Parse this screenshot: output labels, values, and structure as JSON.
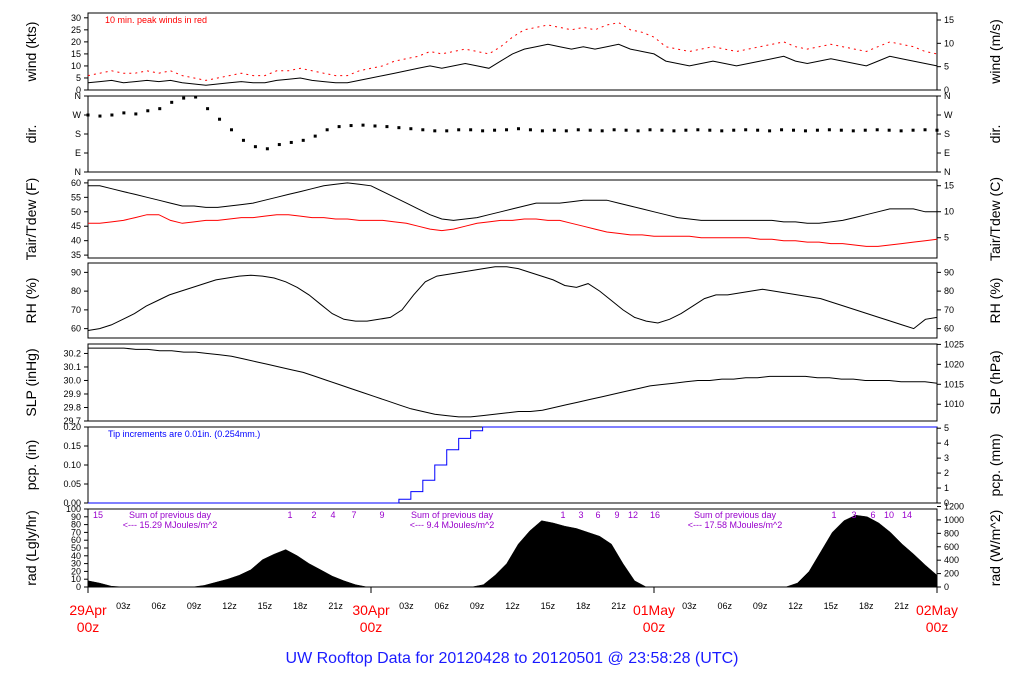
{
  "footer": "UW Rooftop Data for 20120428  to  20120501 @ 23:58:28  (UTC)",
  "colors": {
    "primary": "#000000",
    "red": "#ff0000",
    "blue": "#0000ff",
    "purple": "#9900cc",
    "footer": "#1a1aff"
  },
  "chart_data": [
    {
      "id": "wind",
      "type": "line",
      "ylabel": "wind (kts)",
      "ylabel_right": "wind (m/s)",
      "ylim": [
        0,
        32
      ],
      "yticks": [
        0,
        5,
        10,
        15,
        20,
        25,
        30
      ],
      "ylim_right": [
        0,
        16.5
      ],
      "yticks_right": [
        0,
        5,
        10,
        15
      ],
      "annotation": "10 min. peak winds in red",
      "series": [
        {
          "name": "wind",
          "values": [
            3,
            3.5,
            4,
            3,
            3.5,
            4,
            3.5,
            4,
            3,
            2.5,
            2,
            2.5,
            3,
            3.5,
            3,
            3,
            4,
            4.5,
            5,
            4,
            3.5,
            3,
            3,
            4,
            5,
            6,
            7,
            8,
            9,
            10,
            9,
            10,
            11,
            10,
            9,
            12,
            15,
            17,
            18,
            19,
            18,
            17,
            18,
            17,
            18,
            19,
            17,
            16,
            15,
            12,
            11,
            10,
            11,
            12,
            11,
            10,
            11,
            12,
            13,
            14,
            12,
            11,
            12,
            13,
            12,
            11,
            10,
            12,
            14,
            13,
            12,
            11,
            10
          ]
        },
        {
          "name": "peak",
          "values": [
            6,
            7,
            8,
            7,
            7,
            8,
            7,
            8,
            6,
            5,
            4,
            5,
            6,
            7,
            6,
            6,
            8,
            8,
            9,
            8,
            7,
            6,
            6,
            8,
            9,
            10,
            12,
            13,
            14,
            16,
            15,
            16,
            17,
            16,
            15,
            18,
            22,
            25,
            26,
            27,
            26,
            25,
            26,
            25,
            27,
            28,
            25,
            24,
            22,
            18,
            17,
            16,
            17,
            18,
            17,
            16,
            17,
            18,
            19,
            20,
            18,
            17,
            18,
            19,
            18,
            17,
            16,
            18,
            20,
            19,
            18,
            16,
            15
          ]
        }
      ]
    },
    {
      "id": "dir",
      "type": "scatter",
      "ylabel": "dir.",
      "ylabel_right": "dir.",
      "ylim": [
        0,
        360
      ],
      "ytick_labels": [
        "N",
        "W",
        "S",
        "E",
        "N"
      ],
      "series": [
        {
          "name": "dir",
          "values": [
            270,
            265,
            270,
            280,
            275,
            290,
            300,
            330,
            350,
            355,
            300,
            250,
            200,
            150,
            120,
            110,
            130,
            140,
            150,
            170,
            200,
            215,
            220,
            222,
            218,
            215,
            210,
            205,
            200,
            195,
            195,
            200,
            200,
            195,
            198,
            200,
            205,
            200,
            195,
            198,
            195,
            200,
            198,
            195,
            200,
            198,
            195,
            200,
            198,
            195,
            198,
            200,
            198,
            195,
            198,
            200,
            198,
            195,
            200,
            198,
            195,
            198,
            200,
            198,
            195,
            198,
            200,
            198,
            195,
            198,
            200,
            198
          ]
        }
      ]
    },
    {
      "id": "temp",
      "type": "line",
      "ylabel": "Tair/Tdew (F)",
      "ylabel_right": "Tair/Tdew (C)",
      "ylim": [
        34,
        61
      ],
      "yticks": [
        35,
        40,
        45,
        50,
        55,
        60
      ],
      "ylim_right": [
        1.1,
        16.1
      ],
      "yticks_right": [
        5,
        10,
        15
      ],
      "series": [
        {
          "name": "Tair",
          "values": [
            59,
            59,
            58,
            57,
            56,
            55,
            54,
            53,
            52,
            52,
            51.5,
            51.5,
            52,
            52.5,
            53,
            54,
            55,
            56,
            57,
            58,
            59,
            59.5,
            60,
            59.5,
            59,
            57,
            55,
            53,
            51,
            49,
            47.5,
            47,
            47.5,
            48,
            49,
            50,
            51,
            52,
            53,
            53,
            53,
            53.5,
            54,
            54,
            54,
            53,
            52,
            51,
            50,
            49,
            48,
            47.5,
            47,
            47,
            47,
            47,
            47,
            47,
            47,
            46.5,
            46.5,
            46,
            46,
            46.5,
            47,
            48,
            49,
            50,
            51,
            51,
            51,
            50,
            50
          ]
        },
        {
          "name": "Tdew",
          "values": [
            46,
            46,
            46.5,
            47,
            48,
            49,
            49,
            47,
            46,
            46.5,
            47,
            47,
            47.5,
            48,
            48,
            48.5,
            49,
            49,
            48.5,
            48,
            48,
            47.5,
            47.5,
            47,
            47,
            47,
            46.5,
            46,
            45,
            44,
            43.5,
            44,
            45,
            46,
            46.5,
            47,
            47,
            47.5,
            47.5,
            47,
            47,
            46,
            45,
            44,
            43,
            42.5,
            42,
            42,
            41.5,
            41.5,
            41.5,
            41.5,
            41,
            41,
            41,
            41,
            41,
            40.5,
            40.5,
            40,
            40,
            39.5,
            39.5,
            39,
            39,
            38.5,
            38,
            38,
            38.5,
            39,
            39.5,
            40,
            40.5
          ]
        }
      ]
    },
    {
      "id": "rh",
      "type": "line",
      "ylabel": "RH (%)",
      "ylabel_right": "RH (%)",
      "ylim": [
        55,
        95
      ],
      "yticks": [
        60,
        70,
        80,
        90
      ],
      "series": [
        {
          "name": "RH",
          "values": [
            59,
            60,
            62,
            65,
            68,
            72,
            75,
            78,
            80,
            82,
            84,
            86,
            87,
            88,
            88.5,
            88,
            87,
            85,
            82,
            78,
            73,
            68,
            65,
            64,
            64,
            65,
            66,
            70,
            78,
            85,
            88,
            89,
            90,
            91,
            92,
            93,
            93,
            92,
            90,
            88,
            86,
            83,
            82,
            84,
            80,
            75,
            70,
            66,
            64,
            63,
            65,
            68,
            72,
            76,
            78,
            78,
            79,
            80,
            81,
            80,
            79,
            78,
            77,
            76,
            74,
            72,
            70,
            68,
            66,
            64,
            62,
            60,
            65,
            66
          ]
        }
      ]
    },
    {
      "id": "slp",
      "type": "line",
      "ylabel": "SLP (inHg)",
      "ylabel_right": "SLP (hPa)",
      "ylim": [
        29.7,
        30.27
      ],
      "yticks": [
        29.7,
        29.8,
        29.9,
        30.0,
        30.1,
        30.2
      ],
      "ylim_right": [
        1005.8,
        1025.1
      ],
      "yticks_right": [
        1010,
        1015,
        1020,
        1025
      ],
      "series": [
        {
          "name": "SLP",
          "values": [
            30.24,
            30.24,
            30.24,
            30.24,
            30.23,
            30.23,
            30.22,
            30.22,
            30.21,
            30.21,
            30.2,
            30.19,
            30.18,
            30.16,
            30.14,
            30.12,
            30.1,
            30.08,
            30.06,
            30.03,
            30.0,
            29.97,
            29.94,
            29.91,
            29.88,
            29.85,
            29.82,
            29.79,
            29.77,
            29.75,
            29.74,
            29.73,
            29.73,
            29.74,
            29.75,
            29.76,
            29.77,
            29.77,
            29.78,
            29.8,
            29.82,
            29.84,
            29.86,
            29.88,
            29.9,
            29.92,
            29.94,
            29.96,
            29.97,
            29.98,
            29.99,
            30.0,
            30.0,
            30.01,
            30.01,
            30.02,
            30.02,
            30.03,
            30.03,
            30.03,
            30.03,
            30.02,
            30.02,
            30.01,
            30.01,
            30.0,
            30.0,
            30.0,
            29.99,
            29.99,
            29.99,
            29.98
          ]
        }
      ]
    },
    {
      "id": "pcp",
      "type": "line",
      "ylabel": "pcp. (in)",
      "ylabel_right": "pcp. (mm)",
      "ylim": [
        0,
        0.2
      ],
      "yticks": [
        0.0,
        0.05,
        0.1,
        0.15,
        0.2
      ],
      "ylim_right": [
        0,
        5.08
      ],
      "yticks_right": [
        0,
        1,
        2,
        3,
        4,
        5
      ],
      "annotation": "Tip increments are 0.01in. (0.254mm.)",
      "series": [
        {
          "name": "pcp",
          "values": [
            0,
            0,
            0,
            0,
            0,
            0,
            0,
            0,
            0,
            0,
            0,
            0,
            0,
            0,
            0,
            0,
            0,
            0,
            0,
            0,
            0,
            0,
            0,
            0,
            0,
            0,
            0.01,
            0.03,
            0.06,
            0.1,
            0.14,
            0.17,
            0.19,
            0.2,
            0.2,
            0.2,
            0.2,
            0.2,
            0.2,
            0.2,
            0.2,
            0.2,
            0.2,
            0.2,
            0.2,
            0.2,
            0.2,
            0.2,
            0.2,
            0.2,
            0.2,
            0.2,
            0.2,
            0.2,
            0.2,
            0.2,
            0.2,
            0.2,
            0.2,
            0.2,
            0.2,
            0.2,
            0.2,
            0.2,
            0.2,
            0.2,
            0.2,
            0.2,
            0.2,
            0.2,
            0.2,
            0.2
          ]
        }
      ]
    },
    {
      "id": "rad",
      "type": "area",
      "ylabel": "rad (Lgly/hr)",
      "ylabel_right": "rad (W/m^2)",
      "ylim": [
        0,
        100
      ],
      "yticks": [
        0,
        10,
        20,
        30,
        40,
        50,
        60,
        70,
        80,
        90,
        100
      ],
      "ylim_right": [
        0,
        1163
      ],
      "yticks_right": [
        0,
        200,
        400,
        600,
        800,
        1000,
        1200
      ],
      "series": [
        {
          "name": "rad",
          "values": [
            8,
            5,
            1,
            0,
            0,
            0,
            0,
            0,
            0,
            0,
            2,
            6,
            10,
            15,
            22,
            35,
            42,
            48,
            40,
            30,
            22,
            14,
            8,
            3,
            0,
            0,
            0,
            0,
            0,
            0,
            0,
            0,
            0,
            0,
            3,
            15,
            30,
            55,
            72,
            85,
            82,
            78,
            75,
            70,
            65,
            55,
            30,
            8,
            0,
            0,
            0,
            0,
            0,
            0,
            0,
            0,
            0,
            0,
            0,
            0,
            0,
            5,
            20,
            45,
            70,
            85,
            92,
            90,
            82,
            70,
            55,
            42,
            28,
            15
          ]
        }
      ],
      "hour_labels": [
        {
          "day": 0,
          "labels": [
            "15",
            "1",
            "2",
            "4",
            "7",
            "9"
          ]
        },
        {
          "day": 1,
          "labels": [
            "1",
            "3",
            "6",
            "9",
            "12",
            "16"
          ]
        },
        {
          "day": 2,
          "labels": [
            "1",
            "3",
            "6",
            "10",
            "14"
          ]
        }
      ],
      "day_sums": [
        {
          "title": "Sum of previous day",
          "value": "<--- 15.29 MJoules/m^2"
        },
        {
          "title": "Sum of previous day",
          "value": "<--- 9.4 MJoules/m^2"
        },
        {
          "title": "Sum of previous day",
          "value": "<--- 17.58 MJoules/m^2"
        }
      ]
    }
  ],
  "x_axis": {
    "hour_ticks": [
      "03z",
      "06z",
      "09z",
      "12z",
      "15z",
      "18z",
      "21z"
    ],
    "day_labels": [
      {
        "date": "29Apr",
        "hour": "00z"
      },
      {
        "date": "30Apr",
        "hour": "00z"
      },
      {
        "date": "01May",
        "hour": "00z"
      },
      {
        "date": "02May",
        "hour": "00z"
      }
    ]
  }
}
